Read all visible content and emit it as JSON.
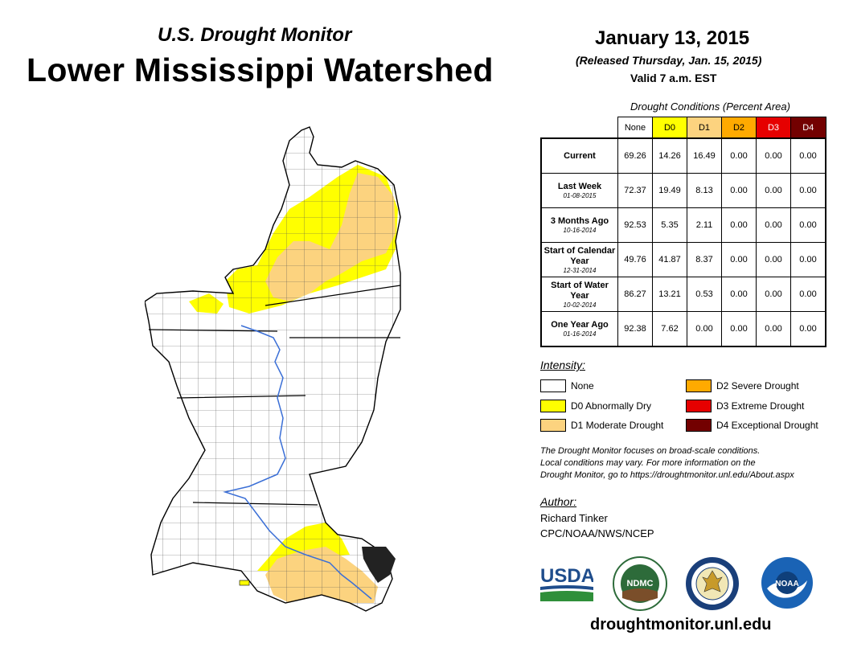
{
  "header": {
    "subtitle": "U.S. Drought Monitor",
    "title": "Lower Mississippi Watershed",
    "date": "January 13, 2015",
    "released": "(Released Thursday, Jan. 15, 2015)",
    "valid": "Valid 7 a.m. EST"
  },
  "table": {
    "caption": "Drought Conditions (Percent Area)",
    "columns": [
      {
        "label": "None",
        "color": "#ffffff"
      },
      {
        "label": "D0",
        "color": "#ffff00"
      },
      {
        "label": "D1",
        "color": "#fcd37f"
      },
      {
        "label": "D2",
        "color": "#ffaa00"
      },
      {
        "label": "D3",
        "color": "#e60000"
      },
      {
        "label": "D4",
        "color": "#730000"
      }
    ],
    "rows": [
      {
        "label": "Current",
        "sublabel": "",
        "values": [
          "69.26",
          "14.26",
          "16.49",
          "0.00",
          "0.00",
          "0.00"
        ]
      },
      {
        "label": "Last Week",
        "sublabel": "01-08-2015",
        "values": [
          "72.37",
          "19.49",
          "8.13",
          "0.00",
          "0.00",
          "0.00"
        ]
      },
      {
        "label": "3 Months Ago",
        "sublabel": "10-16-2014",
        "values": [
          "92.53",
          "5.35",
          "2.11",
          "0.00",
          "0.00",
          "0.00"
        ]
      },
      {
        "label": "Start of Calendar Year",
        "sublabel": "12-31-2014",
        "values": [
          "49.76",
          "41.87",
          "8.37",
          "0.00",
          "0.00",
          "0.00"
        ]
      },
      {
        "label": "Start of Water Year",
        "sublabel": "10-02-2014",
        "values": [
          "86.27",
          "13.21",
          "0.53",
          "0.00",
          "0.00",
          "0.00"
        ]
      },
      {
        "label": "One Year Ago",
        "sublabel": "01-16-2014",
        "values": [
          "92.38",
          "7.62",
          "0.00",
          "0.00",
          "0.00",
          "0.00"
        ]
      }
    ]
  },
  "legend": {
    "title": "Intensity:",
    "items": [
      {
        "label": "None",
        "color": "#ffffff"
      },
      {
        "label": "D0 Abnormally Dry",
        "color": "#ffff00"
      },
      {
        "label": "D1 Moderate Drought",
        "color": "#fcd37f"
      },
      {
        "label": "D2 Severe Drought",
        "color": "#ffaa00"
      },
      {
        "label": "D3 Extreme Drought",
        "color": "#e60000"
      },
      {
        "label": "D4 Exceptional Drought",
        "color": "#730000"
      }
    ]
  },
  "footnote": {
    "line1": "The Drought Monitor focuses on broad-scale conditions.",
    "line2": "Local conditions may vary. For more information on the",
    "line3": "Drought Monitor, go to https://droughtmonitor.unl.edu/About.aspx"
  },
  "author": {
    "label": "Author:",
    "name": "Richard Tinker",
    "org": "CPC/NOAA/NWS/NCEP"
  },
  "logos": {
    "usda": "USDA",
    "ndmc": "NDMC",
    "noaa": "NOAA"
  },
  "website": "droughtmonitor.unl.edu",
  "colors": {
    "d0": "#ffff00",
    "d1": "#fcd37f",
    "river": "#3b6fd6",
    "usda_blue": "#1f4d8c",
    "usda_green": "#2f8f3a",
    "ndmc_green": "#2d6b3a",
    "noaa_blue": "#1a63b5"
  }
}
